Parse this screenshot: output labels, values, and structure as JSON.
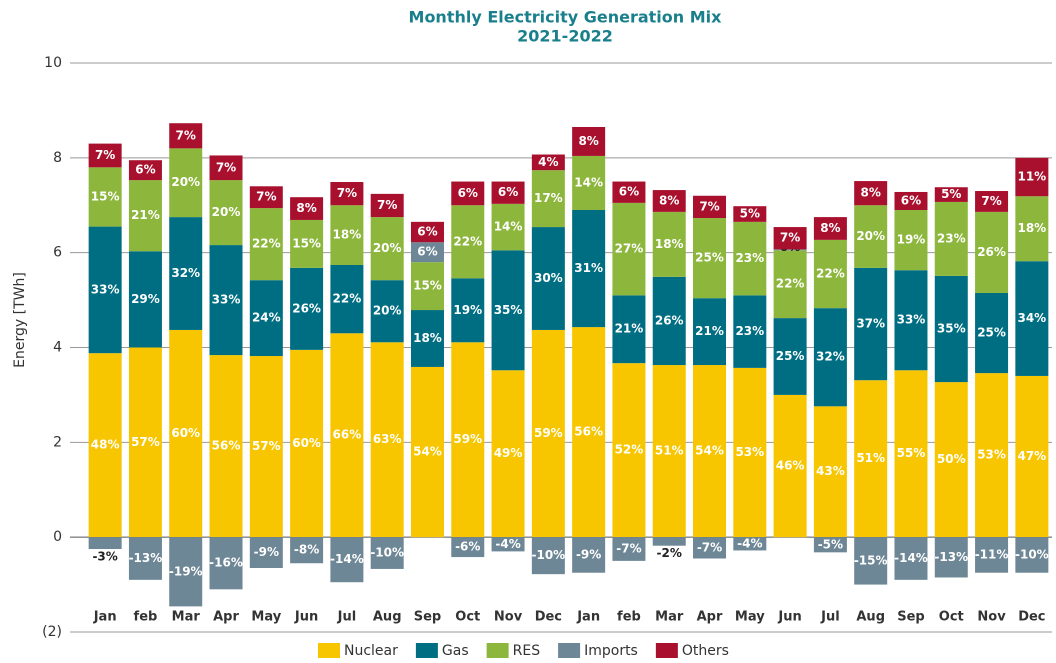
{
  "chart_data": {
    "type": "stacked_bar",
    "title": "Monthly Electricity Generation Mix",
    "subtitle": "2021-2022",
    "y_label": "Energy [TWh]",
    "categories": [
      "Jan",
      "feb",
      "Mar",
      "Apr",
      "May",
      "Jun",
      "Jul",
      "Aug",
      "Sep",
      "Oct",
      "Nov",
      "Dec",
      "Jan",
      "feb",
      "Mar",
      "Apr",
      "May",
      "Jun",
      "Jul",
      "Aug",
      "Sep",
      "Oct",
      "Nov",
      "Dec"
    ],
    "ylim": [
      -2,
      10
    ],
    "yticks": [
      {
        "value": -2,
        "label": "(2)"
      },
      0,
      2,
      4,
      6,
      8,
      10
    ],
    "grid": true,
    "legend": "bottom",
    "series": [
      {
        "name": "Nuclear",
        "color": "#f7c600",
        "values": [
          3.88,
          4.0,
          4.37,
          3.84,
          3.82,
          3.95,
          4.3,
          4.11,
          3.59,
          4.11,
          3.52,
          4.37,
          4.43,
          3.67,
          3.63,
          3.63,
          3.57,
          3.0,
          2.76,
          3.31,
          3.52,
          3.27,
          3.46,
          3.4
        ],
        "share_labels": [
          "48%",
          "57%",
          "60%",
          "56%",
          "57%",
          "60%",
          "66%",
          "63%",
          "54%",
          "59%",
          "49%",
          "59%",
          "56%",
          "52%",
          "51%",
          "54%",
          "53%",
          "46%",
          "43%",
          "51%",
          "55%",
          "50%",
          "53%",
          "47%"
        ]
      },
      {
        "name": "Gas",
        "color": "#006e82",
        "values": [
          2.67,
          2.03,
          2.38,
          2.32,
          1.6,
          1.73,
          1.44,
          1.31,
          1.2,
          1.35,
          2.53,
          2.17,
          2.47,
          1.43,
          1.86,
          1.41,
          1.53,
          1.62,
          2.07,
          2.37,
          2.11,
          2.24,
          1.69,
          2.42
        ],
        "share_labels": [
          "33%",
          "29%",
          "32%",
          "33%",
          "24%",
          "26%",
          "22%",
          "20%",
          "18%",
          "19%",
          "35%",
          "30%",
          "31%",
          "21%",
          "26%",
          "21%",
          "23%",
          "25%",
          "32%",
          "37%",
          "33%",
          "35%",
          "25%",
          "34%"
        ]
      },
      {
        "name": "RES",
        "color": "#8db63c",
        "values": [
          1.25,
          1.5,
          1.45,
          1.37,
          1.52,
          1.01,
          1.26,
          1.33,
          1.01,
          1.54,
          0.98,
          1.2,
          1.14,
          1.95,
          1.37,
          1.69,
          1.55,
          1.43,
          1.44,
          1.32,
          1.27,
          1.56,
          1.71,
          1.37
        ],
        "share_labels": [
          "15%",
          "21%",
          "20%",
          "20%",
          "22%",
          "15%",
          "18%",
          "20%",
          "15%",
          "22%",
          "14%",
          "17%",
          "14%",
          "27%",
          "18%",
          "25%",
          "23%",
          "22%",
          "22%",
          "20%",
          "19%",
          "23%",
          "26%",
          "18%"
        ]
      },
      {
        "name": "Imports",
        "color": "#6e8796",
        "values": [
          -0.25,
          -0.9,
          -1.46,
          -1.1,
          -0.65,
          -0.55,
          -0.95,
          -0.67,
          0.42,
          -0.42,
          -0.3,
          -0.78,
          -0.75,
          -0.5,
          -0.18,
          -0.45,
          -0.28,
          0.02,
          -0.32,
          -1.0,
          -0.9,
          -0.85,
          -0.75,
          -0.75
        ],
        "share_labels": [
          "-3%",
          "-13%",
          "-19%",
          "-16%",
          "-9%",
          "-8%",
          "-14%",
          "-10%",
          "6%",
          "-6%",
          "-4%",
          "-10%",
          "-9%",
          "-7%",
          "-2%",
          "-7%",
          "-4%",
          "0%",
          "-5%",
          "-15%",
          "-14%",
          "-13%",
          "-11%",
          "-10%"
        ]
      },
      {
        "name": "Others",
        "color": "#a8102e",
        "values": [
          0.5,
          0.42,
          0.53,
          0.52,
          0.46,
          0.48,
          0.49,
          0.49,
          0.43,
          0.5,
          0.47,
          0.33,
          0.61,
          0.45,
          0.46,
          0.47,
          0.33,
          0.47,
          0.48,
          0.51,
          0.38,
          0.31,
          0.44,
          0.81
        ],
        "share_labels": [
          "7%",
          "6%",
          "7%",
          "7%",
          "7%",
          "8%",
          "7%",
          "7%",
          "6%",
          "6%",
          "6%",
          "4%",
          "8%",
          "6%",
          "8%",
          "7%",
          "5%",
          "7%",
          "8%",
          "8%",
          "6%",
          "5%",
          "7%",
          "11%"
        ]
      }
    ]
  }
}
